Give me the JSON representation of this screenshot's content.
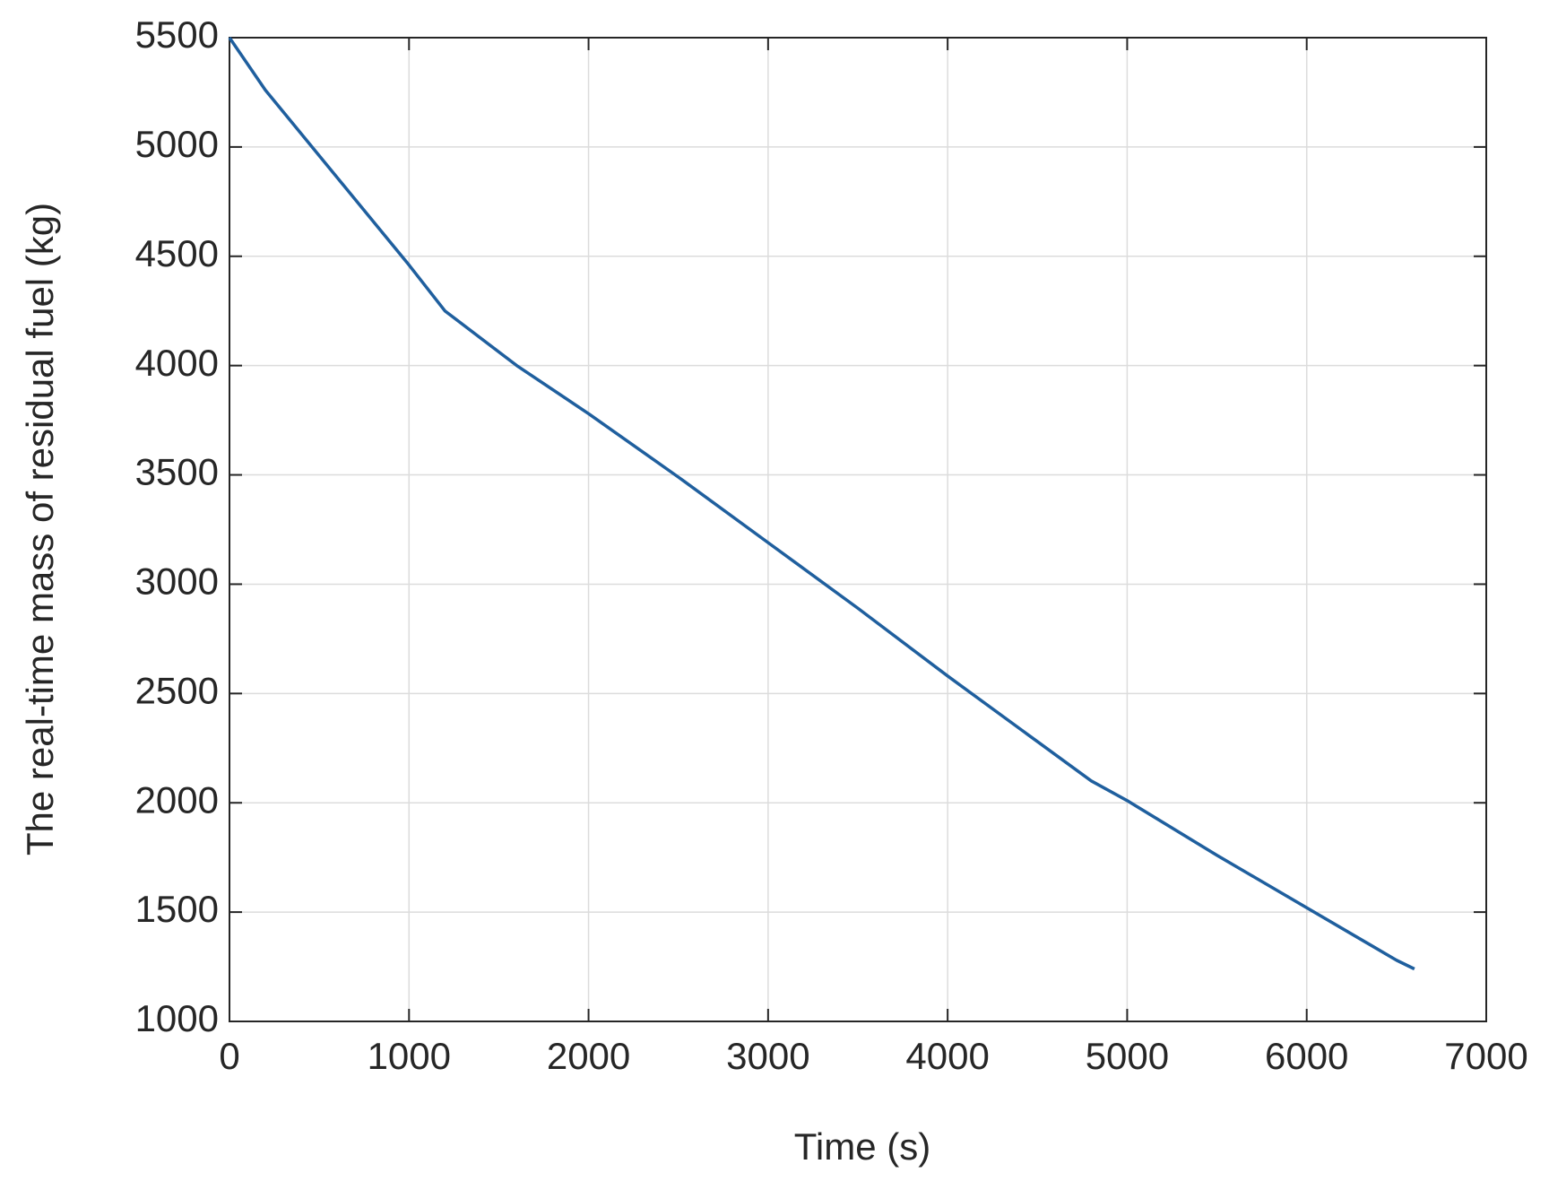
{
  "chart_data": {
    "type": "line",
    "x_label": "Time (s)",
    "y_label": "The real-time mass of residual fuel (kg)",
    "x": [
      0,
      200,
      1000,
      1200,
      1600,
      2000,
      2500,
      3000,
      3500,
      4000,
      4500,
      4800,
      5000,
      5500,
      6000,
      6500,
      6600
    ],
    "series": [
      {
        "color": "#1f5f9e",
        "values": [
          5500,
          5260,
          4460,
          4250,
          4000,
          3780,
          3490,
          3190,
          2890,
          2580,
          2280,
          2100,
          2010,
          1760,
          1520,
          1280,
          1240
        ]
      }
    ],
    "xlim": [
      0,
      7000
    ],
    "xticks": [
      0,
      1000,
      2000,
      3000,
      4000,
      5000,
      6000,
      7000
    ],
    "ylim": [
      1000,
      5500
    ],
    "yticks": [
      1000,
      1500,
      2000,
      2500,
      3000,
      3500,
      4000,
      4500,
      5000,
      5500
    ],
    "grid": true
  }
}
